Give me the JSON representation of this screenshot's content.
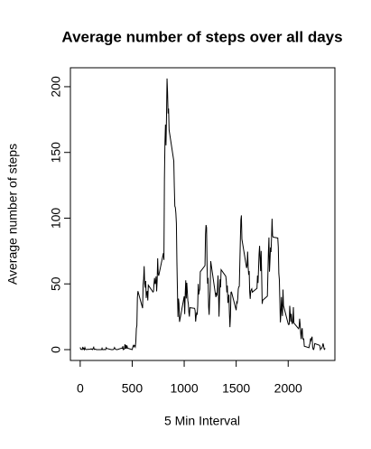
{
  "chart_data": {
    "type": "line",
    "title": "Average number of steps over all days",
    "x_label": "5 Min Interval",
    "y_label": "Average number of steps",
    "color": "#000000",
    "xlim": [
      -94.2,
      2449.2
    ],
    "xticks": [
      0,
      500,
      1000,
      1500,
      2000
    ],
    "ylim": [
      -8.25,
      214.4
    ],
    "yticks": [
      0,
      50,
      100,
      150,
      200
    ],
    "x": [
      0,
      5,
      10,
      15,
      20,
      25,
      30,
      35,
      40,
      45,
      50,
      55,
      100,
      105,
      110,
      115,
      120,
      125,
      130,
      135,
      140,
      145,
      150,
      155,
      200,
      205,
      210,
      215,
      220,
      225,
      230,
      235,
      240,
      245,
      250,
      255,
      300,
      305,
      310,
      315,
      320,
      325,
      330,
      335,
      340,
      345,
      350,
      355,
      400,
      405,
      410,
      415,
      420,
      425,
      430,
      435,
      440,
      445,
      450,
      455,
      500,
      505,
      510,
      515,
      520,
      525,
      530,
      535,
      540,
      545,
      550,
      555,
      600,
      605,
      610,
      615,
      620,
      625,
      630,
      635,
      640,
      645,
      650,
      655,
      700,
      705,
      710,
      715,
      720,
      725,
      730,
      735,
      740,
      745,
      750,
      755,
      800,
      805,
      810,
      815,
      820,
      825,
      830,
      835,
      840,
      845,
      850,
      855,
      900,
      905,
      910,
      915,
      920,
      925,
      930,
      935,
      940,
      945,
      950,
      955,
      1000,
      1005,
      1010,
      1015,
      1020,
      1025,
      1030,
      1035,
      1040,
      1045,
      1050,
      1055,
      1100,
      1105,
      1110,
      1115,
      1120,
      1125,
      1130,
      1135,
      1140,
      1145,
      1150,
      1155,
      1200,
      1205,
      1210,
      1215,
      1220,
      1225,
      1230,
      1235,
      1240,
      1245,
      1250,
      1255,
      1300,
      1305,
      1310,
      1315,
      1320,
      1325,
      1330,
      1335,
      1340,
      1345,
      1350,
      1355,
      1400,
      1405,
      1410,
      1415,
      1420,
      1425,
      1430,
      1435,
      1440,
      1445,
      1450,
      1455,
      1500,
      1505,
      1510,
      1515,
      1520,
      1525,
      1530,
      1535,
      1540,
      1545,
      1550,
      1555,
      1600,
      1605,
      1610,
      1615,
      1620,
      1625,
      1630,
      1635,
      1640,
      1645,
      1650,
      1655,
      1700,
      1705,
      1710,
      1715,
      1720,
      1725,
      1730,
      1735,
      1740,
      1745,
      1750,
      1755,
      1800,
      1805,
      1810,
      1815,
      1820,
      1825,
      1830,
      1835,
      1840,
      1845,
      1850,
      1855,
      1900,
      1905,
      1910,
      1915,
      1920,
      1925,
      1930,
      1935,
      1940,
      1945,
      1950,
      1955,
      2000,
      2005,
      2010,
      2015,
      2020,
      2025,
      2030,
      2035,
      2040,
      2045,
      2050,
      2055,
      2100,
      2105,
      2110,
      2115,
      2120,
      2125,
      2130,
      2135,
      2140,
      2145,
      2150,
      2155,
      2200,
      2205,
      2210,
      2215,
      2220,
      2225,
      2230,
      2235,
      2240,
      2245,
      2250,
      2255,
      2300,
      2305,
      2310,
      2315,
      2320,
      2325,
      2330,
      2335,
      2340,
      2345,
      2350,
      2355
    ],
    "values": [
      1.7,
      0.3,
      0.1,
      0.2,
      0.1,
      2.1,
      0.5,
      0.9,
      0,
      1.5,
      0.3,
      0.1,
      0.3,
      0.7,
      0.2,
      0.3,
      0,
      1.1,
      1.8,
      0.2,
      0.2,
      0.4,
      0.3,
      0,
      0,
      0,
      1.1,
      0,
      0,
      0.1,
      0,
      0.2,
      0,
      0,
      1.5,
      0.9,
      0,
      0,
      0,
      0,
      0.2,
      0.6,
      1.6,
      0.6,
      0.5,
      0.1,
      0,
      0,
      1.2,
      0.9,
      2.6,
      0,
      0.3,
      0.4,
      4.1,
      0.7,
      3.5,
      0.8,
      3.1,
      1.1,
      0,
      1.6,
      3.0,
      2.2,
      3.3,
      3.0,
      2.1,
      6.1,
      16.0,
      18.3,
      39.5,
      44.5,
      31.5,
      49.3,
      53.8,
      63.5,
      50.0,
      47.1,
      52.2,
      39.3,
      44.0,
      44.2,
      37.4,
      49.0,
      43.8,
      44.4,
      50.5,
      54.5,
      49.9,
      51.0,
      55.7,
      44.3,
      52.3,
      69.5,
      57.8,
      56.2,
      73.4,
      68.2,
      129.4,
      157.5,
      171.2,
      155.4,
      177.3,
      206.2,
      195.9,
      179.6,
      183.4,
      167.0,
      143.5,
      124.0,
      109.1,
      108.1,
      103.7,
      96.0,
      66.2,
      45.2,
      24.8,
      38.8,
      35.0,
      21.1,
      40.6,
      27.0,
      42.4,
      52.7,
      38.9,
      50.8,
      44.3,
      37.4,
      34.7,
      28.3,
      25.1,
      31.9,
      31.4,
      29.7,
      21.3,
      25.5,
      28.4,
      26.5,
      33.4,
      50.0,
      42.0,
      44.6,
      46.0,
      59.2,
      63.9,
      87.7,
      94.8,
      92.8,
      63.4,
      50.2,
      54.5,
      32.4,
      26.5,
      37.7,
      45.1,
      67.3,
      42.3,
      39.9,
      43.3,
      41.0,
      46.2,
      56.4,
      42.8,
      25.1,
      40.0,
      53.5,
      47.3,
      60.8,
      55.8,
      52.0,
      43.6,
      48.7,
      35.5,
      37.5,
      41.8,
      27.5,
      17.1,
      26.1,
      43.6,
      43.8,
      30.0,
      36.1,
      35.5,
      38.8,
      46.0,
      47.8,
      48.1,
      65.3,
      82.9,
      98.7,
      102.1,
      84.0,
      62.1,
      64.1,
      74.5,
      63.2,
      56.9,
      59.8,
      43.9,
      38.6,
      44.7,
      45.5,
      46.2,
      43.7,
      46.6,
      56.3,
      50.7,
      61.2,
      72.7,
      78.9,
      68.9,
      59.7,
      75.1,
      56.5,
      34.8,
      37.5,
      40.7,
      58.0,
      74.7,
      85.3,
      59.3,
      67.8,
      77.7,
      74.2,
      85.3,
      99.5,
      86.6,
      85.6,
      84.9,
      77.8,
      58.0,
      53.4,
      36.3,
      20.7,
      27.4,
      40.0,
      30.2,
      25.5,
      45.7,
      33.5,
      19.6,
      19.0,
      19.3,
      33.3,
      26.8,
      21.2,
      27.3,
      21.3,
      19.5,
      21.3,
      32.3,
      20.2,
      15.9,
      17.2,
      23.5,
      19.2,
      12.5,
      8.0,
      14.7,
      16.3,
      8.7,
      7.8,
      8.1,
      2.6,
      1.5,
      3.7,
      4.8,
      8.5,
      7.1,
      8.7,
      9.8,
      2.2,
      0.3,
      0.1,
      1.6,
      4.6,
      3.3,
      2.8,
      0,
      0.8,
      1.0,
      1.6,
      2.6,
      4.7,
      3.3,
      0.6,
      0.2,
      1.1
    ]
  }
}
